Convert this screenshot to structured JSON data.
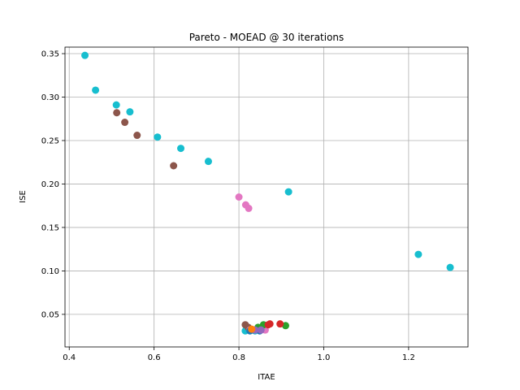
{
  "chart_data": {
    "type": "scatter",
    "title": "Pareto - MOEAD @ 30 iterations",
    "xlabel": "ITAE",
    "ylabel": "ISE",
    "xlim": [
      0.39,
      1.34
    ],
    "ylim": [
      0.0125,
      0.3575
    ],
    "xticks": [
      0.4,
      0.6,
      0.8,
      1.0,
      1.2
    ],
    "xtick_labels": [
      "0.4",
      "0.6",
      "0.8",
      "1.0",
      "1.2"
    ],
    "yticks": [
      0.05,
      0.1,
      0.15,
      0.2,
      0.25,
      0.3,
      0.35
    ],
    "ytick_labels": [
      "0.05",
      "0.10",
      "0.15",
      "0.20",
      "0.25",
      "0.30",
      "0.35"
    ],
    "grid": true,
    "series": [
      {
        "color": "#17becf",
        "points": [
          [
            0.437,
            0.348
          ],
          [
            0.462,
            0.308
          ],
          [
            0.511,
            0.291
          ],
          [
            0.543,
            0.283
          ],
          [
            0.608,
            0.254
          ],
          [
            0.663,
            0.241
          ],
          [
            0.728,
            0.226
          ],
          [
            0.917,
            0.191
          ],
          [
            1.223,
            0.119
          ],
          [
            1.298,
            0.104
          ],
          [
            0.815,
            0.031
          ],
          [
            0.818,
            0.033
          ],
          [
            0.838,
            0.031
          ]
        ]
      },
      {
        "color": "#8c564b",
        "points": [
          [
            0.512,
            0.282
          ],
          [
            0.531,
            0.271
          ],
          [
            0.56,
            0.256
          ],
          [
            0.646,
            0.221
          ],
          [
            0.815,
            0.038
          ],
          [
            0.822,
            0.035
          ]
        ]
      },
      {
        "color": "#e377c2",
        "points": [
          [
            0.8,
            0.185
          ],
          [
            0.816,
            0.176
          ],
          [
            0.823,
            0.172
          ],
          [
            0.826,
            0.032
          ],
          [
            0.862,
            0.032
          ]
        ]
      },
      {
        "color": "#2ca02c",
        "points": [
          [
            0.858,
            0.038
          ],
          [
            0.91,
            0.037
          ],
          [
            0.845,
            0.035
          ]
        ]
      },
      {
        "color": "#d62728",
        "points": [
          [
            0.873,
            0.039
          ],
          [
            0.897,
            0.039
          ],
          [
            0.869,
            0.038
          ]
        ]
      },
      {
        "color": "#1f77b4",
        "points": [
          [
            0.833,
            0.032
          ],
          [
            0.849,
            0.031
          ],
          [
            0.826,
            0.031
          ]
        ]
      },
      {
        "color": "#9467bd",
        "points": [
          [
            0.838,
            0.032
          ],
          [
            0.852,
            0.032
          ]
        ]
      },
      {
        "color": "#ff7f0e",
        "points": [
          [
            0.83,
            0.033
          ]
        ]
      }
    ]
  }
}
